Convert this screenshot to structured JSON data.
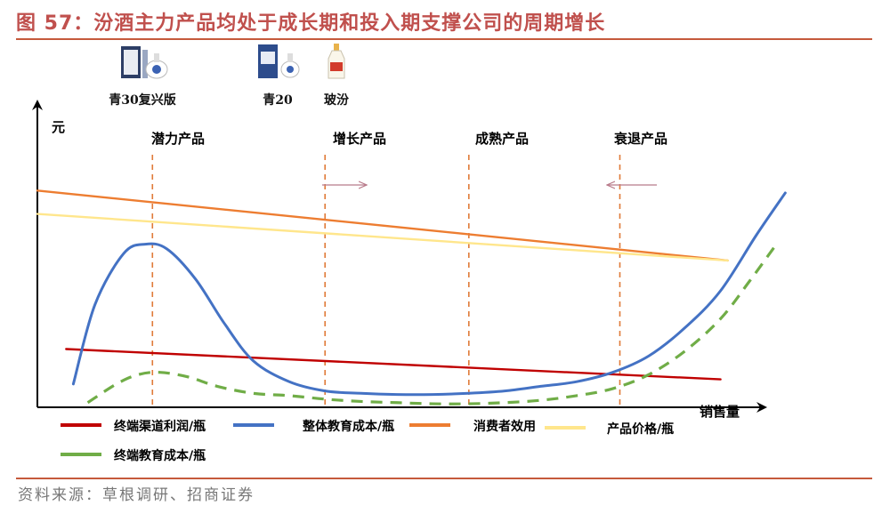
{
  "header": {
    "title": "图 57：汾酒主力产品均处于成长期和投入期支撑公司的周期增长"
  },
  "products": [
    {
      "name": "青30复兴版"
    },
    {
      "name": "青20"
    },
    {
      "name": "玻汾"
    }
  ],
  "source": "资料来源：草根调研、招商证券",
  "colors": {
    "accent": "#c55a3c",
    "channel_profit": "#c00000",
    "overall_edu": "#4472c4",
    "consumer_utility": "#ed7d31",
    "price": "#ffe68c",
    "terminal_edu": "#70ad47"
  },
  "chart_data": {
    "type": "line",
    "title": "汾酒主力产品均处于成长期和投入期支撑公司的周期增长",
    "xlabel": "销售量",
    "ylabel": "元",
    "stage_labels": [
      "潜力产品",
      "增长产品",
      "成熟产品",
      "衰退产品"
    ],
    "stage_boundaries_x": [
      16,
      40,
      60,
      81
    ],
    "xlim": [
      0,
      100
    ],
    "ylim": [
      0,
      100
    ],
    "series": [
      {
        "name": "终端渠道利润/瓶",
        "key": "channel_profit",
        "style": "solid",
        "x": [
          4,
          95
        ],
        "y": [
          25,
          12
        ]
      },
      {
        "name": "整体教育成本/瓶",
        "key": "overall_edu",
        "style": "solid",
        "x": [
          5,
          8,
          12,
          15,
          18,
          22,
          26,
          30,
          35,
          40,
          45,
          50,
          55,
          60,
          65,
          70,
          75,
          80,
          85,
          90,
          95,
          100,
          104
        ],
        "y": [
          10,
          44,
          66,
          70,
          68,
          55,
          36,
          20,
          11,
          7,
          6,
          5.5,
          5.5,
          6,
          7,
          9,
          11,
          15,
          22,
          34,
          50,
          74,
          92
        ]
      },
      {
        "name": "消费者效用",
        "key": "consumer_utility",
        "style": "solid",
        "x": [
          0,
          96
        ],
        "y": [
          93,
          63
        ]
      },
      {
        "name": "产品价格/瓶",
        "key": "price",
        "style": "solid",
        "x": [
          0,
          96
        ],
        "y": [
          83,
          63
        ]
      },
      {
        "name": "终端教育成本/瓶",
        "key": "terminal_edu",
        "style": "dashed",
        "x": [
          7,
          11,
          14,
          17,
          21,
          25,
          30,
          35,
          40,
          45,
          50,
          55,
          60,
          65,
          70,
          75,
          80,
          85,
          90,
          95,
          99,
          103
        ],
        "y": [
          2,
          10,
          14,
          15,
          13,
          9,
          6,
          5,
          3.5,
          2.5,
          2,
          1.5,
          1.5,
          2,
          3,
          5,
          8,
          14,
          24,
          38,
          54,
          71
        ]
      }
    ],
    "legend": [
      {
        "label": "终端渠道利润/瓶",
        "key": "channel_profit"
      },
      {
        "label": "整体教育成本/瓶",
        "key": "overall_edu"
      },
      {
        "label": "消费者效用",
        "key": "consumer_utility"
      },
      {
        "label": "产品价格/瓶",
        "key": "price"
      },
      {
        "label": "终端教育成本/瓶",
        "key": "terminal_edu"
      }
    ],
    "legend_position": "bottom"
  }
}
